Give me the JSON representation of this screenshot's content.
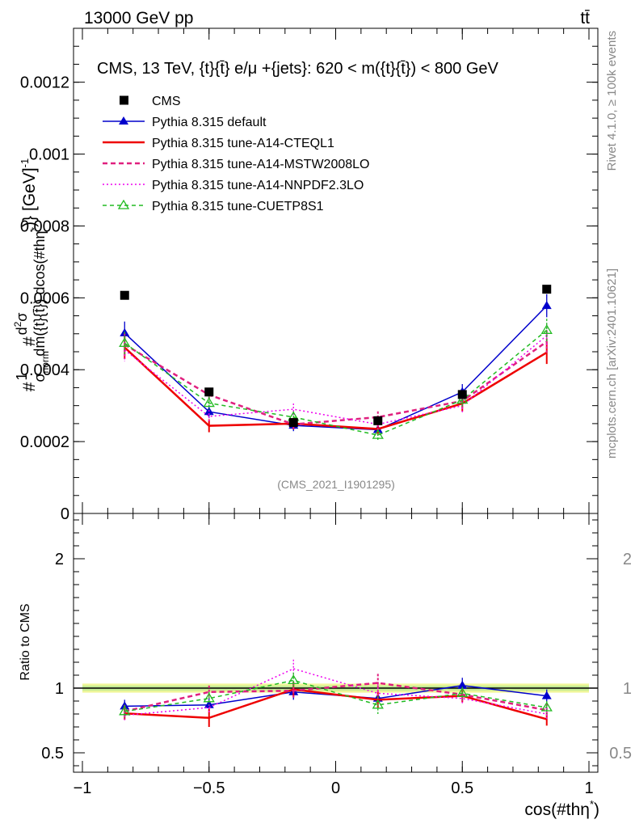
{
  "header": {
    "left": "13000 GeV pp",
    "right": "tt̄"
  },
  "side_labels": {
    "rivet": "Rivet 4.1.0, ≥ 100k events",
    "mcplots": "mcplots.cern.ch [arXiv:2401.10621]"
  },
  "chart_data": [
    {
      "type": "line",
      "panel": "main",
      "title": "CMS, 13 TeV, {t}{t̄} e/μ +{jets}: 620 < m({t}{t̄}) < 800 GeV",
      "watermark": "(CMS_2021_I1901295)",
      "ylabel": "#frac{1}{σ_norm} #frac{d²σ}{dm({t}{t̄}) dcos(#thη*)} [GeV]⁻¹",
      "ylabel_parts": {
        "prefix": "#",
        "num": "1",
        "den": "σ",
        "den_sub": "norm",
        "mid": "#",
        "d2": "d",
        "sup2": "2",
        "sigma": "σ",
        "dm": "dm({t}{t̄}) dcos(#thη",
        "star": "*",
        "unit": ")} [GeV]",
        "unit_exp": "-1"
      },
      "xlim": [
        -1,
        1
      ],
      "ylim": [
        0,
        0.00135
      ],
      "x_ticks": [
        -1,
        -0.5,
        0,
        0.5,
        1
      ],
      "y_ticks": [
        0,
        0.0002,
        0.0004,
        0.0006,
        0.0008,
        0.001,
        0.0012
      ],
      "y_tick_labels": [
        "0",
        "0.0002",
        "0.0004",
        "0.0006",
        "0.0008",
        "0.001",
        "0.0012"
      ],
      "x": [
        -0.8333,
        -0.5,
        -0.1667,
        0.1667,
        0.5,
        0.8333
      ],
      "x_bin_edges": [
        -1,
        -0.6667,
        -0.3333,
        0,
        0.3333,
        0.6667,
        1
      ],
      "legend": [
        {
          "name": "CMS",
          "color": "#000000",
          "style": "marker-square"
        },
        {
          "name": "Pythia 8.315 default",
          "color": "#0000cc",
          "style": "solid-triangle"
        },
        {
          "name": "Pythia 8.315 tune-A14-CTEQL1",
          "color": "#ee0000",
          "style": "solid-thick"
        },
        {
          "name": "Pythia 8.315 tune-A14-MSTW2008LO",
          "color": "#e0207f",
          "style": "dashed-thick"
        },
        {
          "name": "Pythia 8.315 tune-A14-NNPDF2.3LO",
          "color": "#ee00ee",
          "style": "dotted"
        },
        {
          "name": "Pythia 8.315 tune-CUETP8S1",
          "color": "#22bb22",
          "style": "dashed-open-triangle"
        }
      ],
      "series": [
        {
          "name": "CMS",
          "values": [
            0.000607,
            0.000338,
            0.000253,
            0.000258,
            0.000331,
            0.000624
          ],
          "errors": [
            1e-05,
            1e-05,
            1e-05,
            1e-05,
            1e-05,
            1e-05
          ]
        },
        {
          "name": "Pythia 8.315 default",
          "values": [
            0.000502,
            0.000283,
            0.000245,
            0.000233,
            0.000338,
            0.000578
          ],
          "errors": [
            3.2e-05,
            1.8e-05,
            1.6e-05,
            1.6e-05,
            2.2e-05,
            3.2e-05
          ]
        },
        {
          "name": "Pythia 8.315 tune-A14-CTEQL1",
          "values": [
            0.000462,
            0.000244,
            0.00025,
            0.000235,
            0.000306,
            0.000448
          ],
          "errors": [
            3.2e-05,
            1.8e-05,
            1.6e-05,
            1.6e-05,
            2.2e-05,
            3.2e-05
          ]
        },
        {
          "name": "Pythia 8.315 tune-A14-MSTW2008LO",
          "values": [
            0.00047,
            0.00033,
            0.000248,
            0.000268,
            0.000313,
            0.000478
          ],
          "errors": [
            3.2e-05,
            1.8e-05,
            1.6e-05,
            1.6e-05,
            2.2e-05,
            3.2e-05
          ]
        },
        {
          "name": "Pythia 8.315 tune-A14-NNPDF2.3LO",
          "values": [
            0.000455,
            0.00027,
            0.00029,
            0.000248,
            0.0003,
            0.000495
          ],
          "errors": [
            3.2e-05,
            1.8e-05,
            1.6e-05,
            1.6e-05,
            2.2e-05,
            3.2e-05
          ]
        },
        {
          "name": "Pythia 8.315 tune-CUETP8S1",
          "values": [
            0.000474,
            0.000307,
            0.000268,
            0.000218,
            0.000316,
            0.00051
          ],
          "errors": [
            3.2e-05,
            1.8e-05,
            1.6e-05,
            1.6e-05,
            2.2e-05,
            3.2e-05
          ]
        }
      ]
    },
    {
      "type": "line",
      "panel": "ratio",
      "ylabel": "Ratio to CMS",
      "xlabel": "cos(#thη*)",
      "xlabel_parts": {
        "base": "cos(#thη",
        "star": "*",
        "close": ")"
      },
      "xlim": [
        -1,
        1
      ],
      "ylim": [
        0.35,
        2.35
      ],
      "x_ticks": [
        -1,
        -0.5,
        0,
        0.5,
        1
      ],
      "x_tick_labels": [
        "−1",
        "−0.5",
        "0",
        "0.5",
        "1"
      ],
      "y_ticks": [
        0.5,
        1,
        2
      ],
      "y_tick_labels": [
        "0.5",
        "1",
        "2"
      ],
      "x": [
        -0.8333,
        -0.5,
        -0.1667,
        0.1667,
        0.5,
        0.8333
      ],
      "band": {
        "inner": 0.02,
        "outer": 0.035
      },
      "series": [
        {
          "name": "Pythia 8.315 default",
          "values": [
            0.86,
            0.87,
            0.97,
            0.92,
            1.02,
            0.94
          ],
          "errors": [
            0.05,
            0.05,
            0.06,
            0.06,
            0.06,
            0.05
          ]
        },
        {
          "name": "Pythia 8.315 tune-A14-CTEQL1",
          "values": [
            0.805,
            0.77,
            0.99,
            0.91,
            0.94,
            0.76
          ],
          "errors": [
            0.05,
            0.07,
            0.06,
            0.06,
            0.05,
            0.05
          ]
        },
        {
          "name": "Pythia 8.315 tune-A14-MSTW2008LO",
          "values": [
            0.82,
            0.97,
            0.98,
            1.04,
            0.95,
            0.83
          ],
          "errors": [
            0.05,
            0.05,
            0.06,
            0.07,
            0.05,
            0.05
          ]
        },
        {
          "name": "Pythia 8.315 tune-A14-NNPDF2.3LO",
          "values": [
            0.79,
            0.85,
            1.15,
            0.96,
            0.92,
            0.8
          ],
          "errors": [
            0.05,
            0.05,
            0.07,
            0.07,
            0.05,
            0.05
          ]
        },
        {
          "name": "Pythia 8.315 tune-CUETP8S1",
          "values": [
            0.82,
            0.92,
            1.06,
            0.87,
            0.96,
            0.85
          ],
          "errors": [
            0.05,
            0.05,
            0.06,
            0.07,
            0.05,
            0.05
          ]
        }
      ]
    }
  ]
}
